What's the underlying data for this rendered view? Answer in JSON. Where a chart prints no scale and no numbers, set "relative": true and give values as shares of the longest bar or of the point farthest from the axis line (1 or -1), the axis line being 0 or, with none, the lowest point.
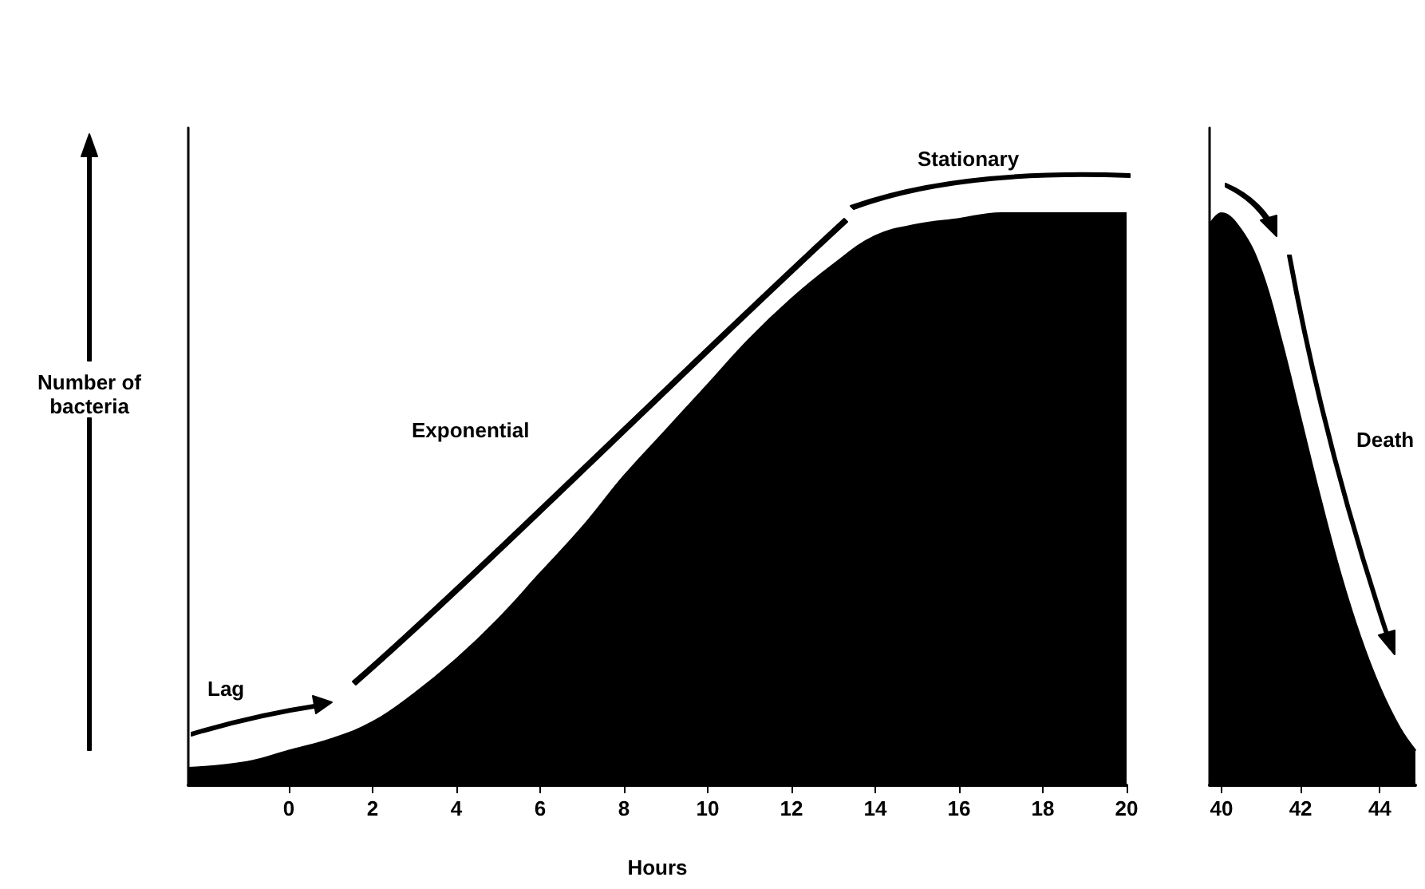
{
  "chart_data": [
    {
      "type": "area",
      "relative": true,
      "xlabel": "Hours",
      "ylabel": "Number of bacteria",
      "tick_labels": "x",
      "x": [
        -2.4,
        -1,
        0,
        1,
        2,
        3,
        4,
        5,
        6,
        7,
        8,
        9,
        10,
        11,
        12,
        13,
        14,
        15,
        16,
        17,
        18,
        19,
        20
      ],
      "xlim": [
        -2.4,
        20
      ],
      "xticks": [
        0,
        2,
        4,
        6,
        8,
        10,
        12,
        14,
        16,
        18,
        20
      ],
      "series": [
        {
          "color": "#000000",
          "values": [
            0.03,
            0.04,
            0.06,
            0.08,
            0.11,
            0.16,
            0.22,
            0.29,
            0.37,
            0.45,
            0.54,
            0.62,
            0.7,
            0.78,
            0.85,
            0.91,
            0.96,
            0.98,
            0.99,
            1,
            1,
            1,
            1
          ]
        }
      ],
      "annotations": [
        "Lag",
        "Exponential",
        "Stationary"
      ]
    },
    {
      "type": "area",
      "relative": true,
      "tick_labels": "x",
      "x": [
        39.7,
        40,
        40.5,
        41,
        41.5,
        42,
        42.5,
        43,
        43.5,
        44,
        44.5,
        44.9
      ],
      "xlim": [
        39.7,
        44.9
      ],
      "xticks": [
        40,
        42,
        44
      ],
      "series": [
        {
          "color": "#000000",
          "values": [
            0.98,
            1,
            0.97,
            0.9,
            0.78,
            0.64,
            0.5,
            0.37,
            0.26,
            0.17,
            0.1,
            0.06
          ]
        }
      ],
      "annotations": [
        "Death"
      ]
    }
  ]
}
